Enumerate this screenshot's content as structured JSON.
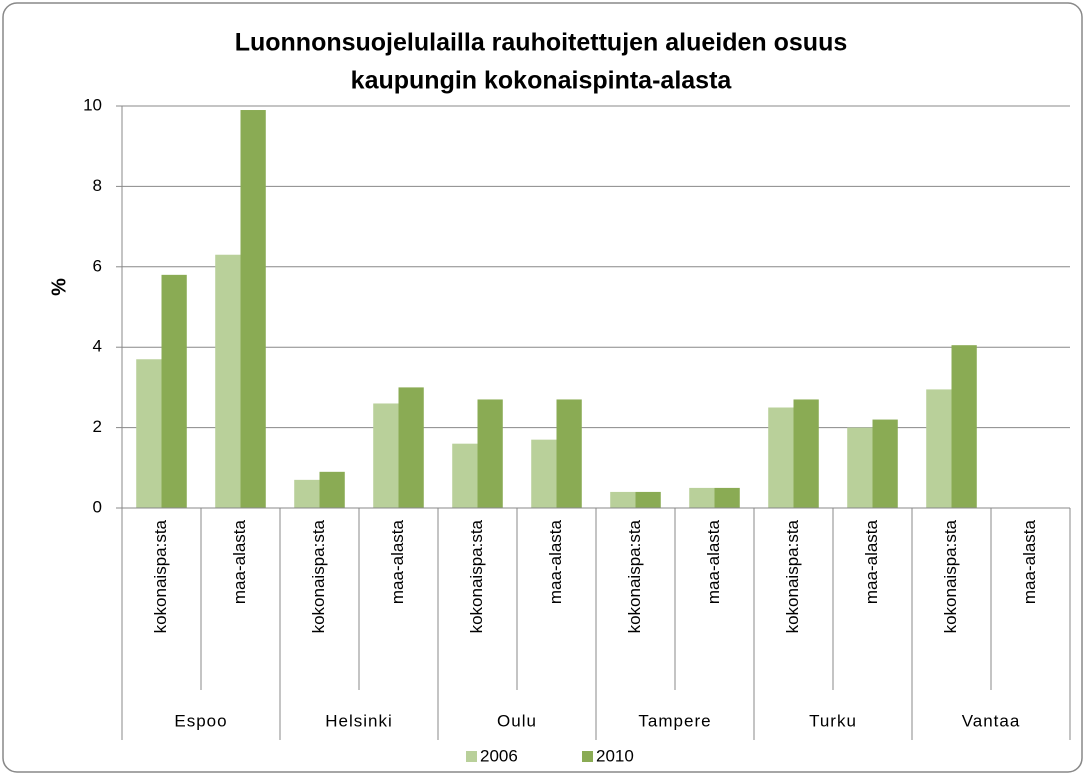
{
  "chart_data": {
    "type": "bar",
    "title": [
      "Luonnonsuojelulailla rauhoitettujen alueiden osuus",
      "kaupungin kokonaispinta-alasta"
    ],
    "y_label": "%",
    "groups": [
      "Espoo",
      "Helsinki",
      "Oulu",
      "Tampere",
      "Turku",
      "Vantaa"
    ],
    "categories": [
      "kokonaispa:sta",
      "maa-alasta",
      "kokonaispa:sta",
      "maa-alasta",
      "kokonaispa:sta",
      "maa-alasta",
      "kokonaispa:sta",
      "maa-alasta",
      "kokonaispa:sta",
      "maa-alasta",
      "kokonaispa:sta",
      "maa-alasta"
    ],
    "series": [
      {
        "name": "2006",
        "color": "#b9d09a",
        "values": [
          3.7,
          6.3,
          0.7,
          2.6,
          1.6,
          1.7,
          0.4,
          0.5,
          2.5,
          2.0,
          2.95,
          null
        ]
      },
      {
        "name": "2010",
        "color": "#8aab54",
        "values": [
          5.8,
          9.9,
          0.9,
          3.0,
          2.7,
          2.7,
          0.4,
          0.5,
          2.7,
          2.2,
          4.05,
          null
        ]
      }
    ],
    "ylim": [
      0,
      10
    ],
    "yticks": [
      0,
      2,
      4,
      6,
      8,
      10
    ],
    "grid": true,
    "legend": "bottom"
  }
}
